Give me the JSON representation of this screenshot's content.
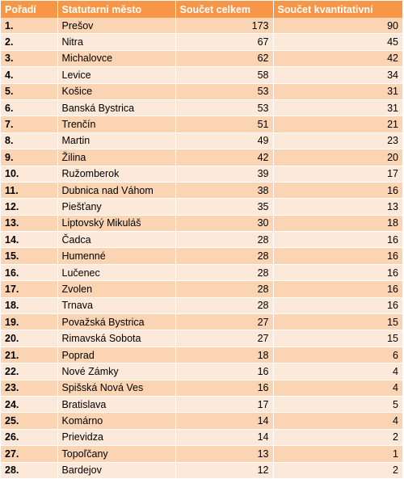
{
  "headers": {
    "rank": "Pořadí",
    "city": "Statutarni město",
    "total": "Součet celkem",
    "quant": "Součet kvantitativní"
  },
  "rows": [
    {
      "rank": "1.",
      "city": "Prešov",
      "total": "173",
      "quant": "90"
    },
    {
      "rank": "2.",
      "city": "Nitra",
      "total": "67",
      "quant": "45"
    },
    {
      "rank": "3.",
      "city": "Michalovce",
      "total": "62",
      "quant": "42"
    },
    {
      "rank": "4.",
      "city": "Levice",
      "total": "58",
      "quant": "34"
    },
    {
      "rank": "5.",
      "city": "Košice",
      "total": "53",
      "quant": "31"
    },
    {
      "rank": "6.",
      "city": "Banská Bystrica",
      "total": "53",
      "quant": "31"
    },
    {
      "rank": "7.",
      "city": "Trenčín",
      "total": "51",
      "quant": "21"
    },
    {
      "rank": "8.",
      "city": "Martin",
      "total": "49",
      "quant": "23"
    },
    {
      "rank": "9.",
      "city": "Žilina",
      "total": "42",
      "quant": "20"
    },
    {
      "rank": "10.",
      "city": "Ružomberok",
      "total": "39",
      "quant": "17"
    },
    {
      "rank": "11.",
      "city": "Dubnica nad Váhom",
      "total": "38",
      "quant": "16"
    },
    {
      "rank": "12.",
      "city": "Piešťany",
      "total": "35",
      "quant": "13"
    },
    {
      "rank": "13.",
      "city": "Liptovský Mikuláš",
      "total": "30",
      "quant": "18"
    },
    {
      "rank": "14.",
      "city": "Čadca",
      "total": "28",
      "quant": "16"
    },
    {
      "rank": "15.",
      "city": "Humenné",
      "total": "28",
      "quant": "16"
    },
    {
      "rank": "16.",
      "city": "Lučenec",
      "total": "28",
      "quant": "16"
    },
    {
      "rank": "17.",
      "city": "Zvolen",
      "total": "28",
      "quant": "16"
    },
    {
      "rank": "18.",
      "city": "Trnava",
      "total": "28",
      "quant": "16"
    },
    {
      "rank": "19.",
      "city": "Považská Bystrica",
      "total": "27",
      "quant": "15"
    },
    {
      "rank": "20.",
      "city": "Rimavská Sobota",
      "total": "27",
      "quant": "15"
    },
    {
      "rank": "21.",
      "city": "Poprad",
      "total": "18",
      "quant": "6"
    },
    {
      "rank": "22.",
      "city": "Nové Zámky",
      "total": "16",
      "quant": "4"
    },
    {
      "rank": "23.",
      "city": "Spišská Nová Ves",
      "total": "16",
      "quant": "4"
    },
    {
      "rank": "24.",
      "city": "Bratislava",
      "total": "17",
      "quant": "5"
    },
    {
      "rank": "25.",
      "city": "Komárno",
      "total": "14",
      "quant": "4"
    },
    {
      "rank": "26.",
      "city": "Prievidza",
      "total": "14",
      "quant": "2"
    },
    {
      "rank": "27.",
      "city": "Topoľčany",
      "total": "13",
      "quant": "1"
    },
    {
      "rank": "28.",
      "city": "Bardejov",
      "total": "12",
      "quant": "2"
    }
  ],
  "colors": {
    "header_bg": "#f79646",
    "row_odd": "#fbd4b4",
    "row_even": "#fde9d9"
  }
}
